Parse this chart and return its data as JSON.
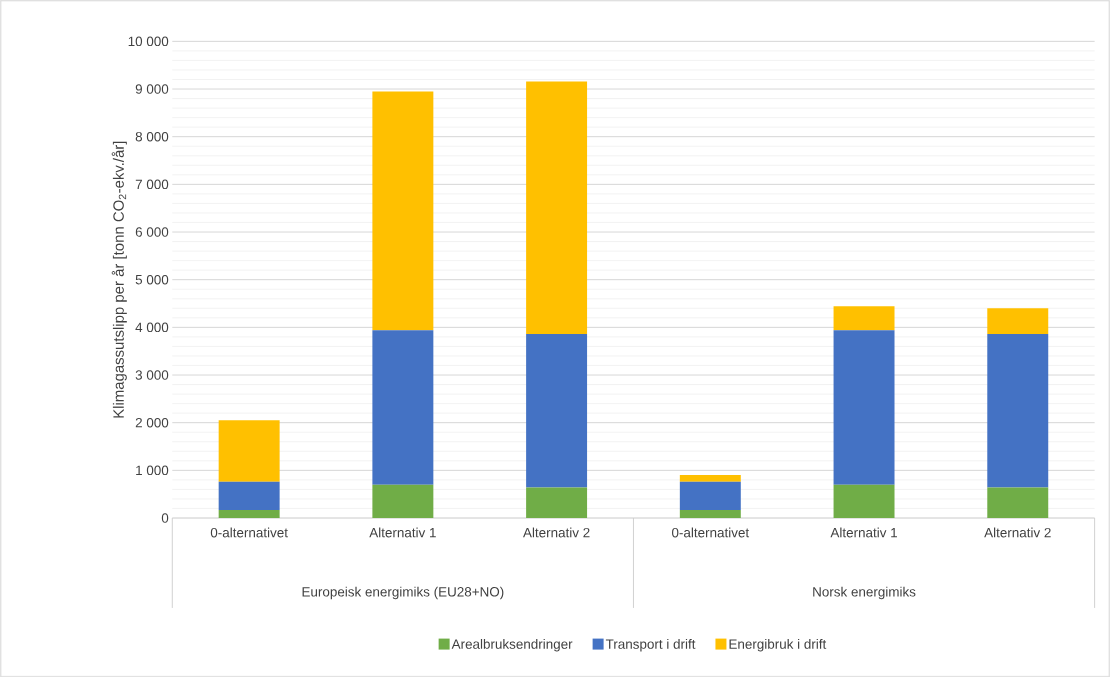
{
  "chart_data": {
    "type": "bar",
    "stacked": true,
    "ylabel": "Klimagassutslipp per år [tonn CO$_{2}$-ekv./år]",
    "categories": [
      "0-alternativet",
      "Alternativ 1",
      "Alternativ 2",
      "0-alternativet",
      "Alternativ 1",
      "Alternativ 2"
    ],
    "annotations": [
      "Europeisk energimiks (EU28+NO)",
      "Norsk energimiks"
    ],
    "series": [
      {
        "name": "Arealbruksendringer",
        "color": "#70ad47",
        "values": [
          170,
          700,
          640,
          170,
          700,
          640
        ]
      },
      {
        "name": "Transport i drift",
        "color": "#4472c4",
        "values": [
          590,
          3240,
          3220,
          590,
          3240,
          3220
        ]
      },
      {
        "name": "Energibruk i drift",
        "color": "#ffc000",
        "values": [
          1290,
          5010,
          5300,
          140,
          500,
          540
        ]
      }
    ],
    "ylim": [
      0,
      10000
    ],
    "yticks": [
      0,
      {
        "value": 1000,
        "label": "1 000"
      },
      {
        "value": 2000,
        "label": "2 000"
      },
      {
        "value": 3000,
        "label": "3 000"
      },
      {
        "value": 4000,
        "label": "4 000"
      },
      {
        "value": 5000,
        "label": "5 000"
      },
      {
        "value": 6000,
        "label": "6 000"
      },
      {
        "value": 7000,
        "label": "7 000"
      },
      {
        "value": 8000,
        "label": "8 000"
      },
      {
        "value": 9000,
        "label": "9 000"
      },
      {
        "value": 10000,
        "label": "10 000"
      }
    ],
    "grid": "y",
    "legend": "bottom"
  }
}
